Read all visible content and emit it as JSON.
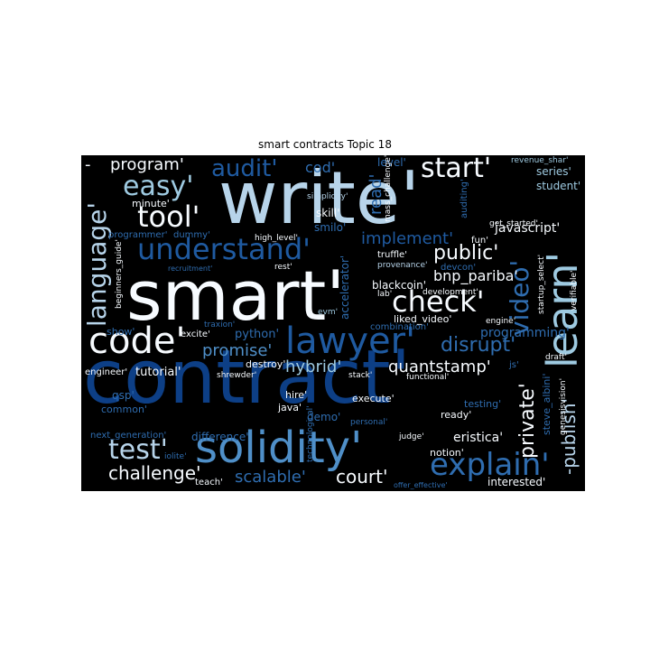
{
  "title": "smart contracts Topic 18",
  "palette": {
    "background": "#000000",
    "white": "#f7fbff",
    "light_blue": "#b7d4ea",
    "mid_blue": "#5a9ad0",
    "blue": "#2f6db0",
    "dark_blue": "#0d3f86",
    "navy": "#0a2f6a"
  },
  "words": [
    {
      "id": "smart",
      "text": "smart'"
    },
    {
      "id": "write",
      "text": "write'"
    },
    {
      "id": "contract",
      "text": "contract'"
    },
    {
      "id": "solidity",
      "text": "solidity'"
    },
    {
      "id": "code",
      "text": "code'"
    },
    {
      "id": "lawyer",
      "text": "lawyer'"
    },
    {
      "id": "learn",
      "text": "learn'"
    },
    {
      "id": "video",
      "text": "video'"
    },
    {
      "id": "explain",
      "text": "explain'"
    },
    {
      "id": "check",
      "text": "check'"
    },
    {
      "id": "start",
      "text": "start'"
    },
    {
      "id": "understand",
      "text": "understand'"
    },
    {
      "id": "language",
      "text": "language'"
    },
    {
      "id": "easy",
      "text": "easy'"
    },
    {
      "id": "tool",
      "text": "tool'"
    },
    {
      "id": "audit",
      "text": "audit'"
    },
    {
      "id": "program",
      "text": "program'"
    },
    {
      "id": "test",
      "text": "test'"
    },
    {
      "id": "challenge",
      "text": "challenge'"
    },
    {
      "id": "scalable",
      "text": "scalable'"
    },
    {
      "id": "court",
      "text": "court'"
    },
    {
      "id": "private",
      "text": "private'"
    },
    {
      "id": "publish",
      "text": "-publish'"
    },
    {
      "id": "quantstamp",
      "text": "quantstamp'"
    },
    {
      "id": "hybrid",
      "text": "hybrid'"
    },
    {
      "id": "promise",
      "text": "promise'"
    },
    {
      "id": "disrupt",
      "text": "disrupt'"
    },
    {
      "id": "implement",
      "text": "implement'"
    },
    {
      "id": "public",
      "text": "public'"
    },
    {
      "id": "bnp_pariba",
      "text": "bnp_pariba'"
    },
    {
      "id": "javascript",
      "text": "javascript'"
    },
    {
      "id": "cod",
      "text": "cod'"
    },
    {
      "id": "level",
      "text": "level'"
    },
    {
      "id": "read",
      "text": "read'"
    },
    {
      "id": "skill",
      "text": "skill'"
    },
    {
      "id": "smilo",
      "text": "smilo'"
    },
    {
      "id": "simplicity",
      "text": "simplicity'"
    },
    {
      "id": "mass_challenge",
      "text": "mass_challenge'"
    },
    {
      "id": "auditing",
      "text": "auditing'"
    },
    {
      "id": "series",
      "text": "series'"
    },
    {
      "id": "student",
      "text": "student'"
    },
    {
      "id": "revenue_shar",
      "text": "revenue_shar'"
    },
    {
      "id": "get_started",
      "text": "get_started'"
    },
    {
      "id": "minute",
      "text": "minute'"
    },
    {
      "id": "programmer",
      "text": "programmer'"
    },
    {
      "id": "dummy",
      "text": "dummy'"
    },
    {
      "id": "high_level",
      "text": "high_level'"
    },
    {
      "id": "fun",
      "text": "fun'"
    },
    {
      "id": "truffle",
      "text": "truffle'"
    },
    {
      "id": "provenance",
      "text": "provenance'"
    },
    {
      "id": "devcon",
      "text": "devcon'"
    },
    {
      "id": "blackcoin",
      "text": "blackcoin'"
    },
    {
      "id": "lab",
      "text": "lab'"
    },
    {
      "id": "development",
      "text": "development'"
    },
    {
      "id": "startup_select",
      "text": "startup_select'"
    },
    {
      "id": "accelerator",
      "text": "accelerator'"
    },
    {
      "id": "beginners_guide",
      "text": "beginners_guide'"
    },
    {
      "id": "recruitment",
      "text": "recruitment'"
    },
    {
      "id": "rest",
      "text": "rest'"
    },
    {
      "id": "evm",
      "text": "evm'"
    },
    {
      "id": "traxion",
      "text": "traxion'"
    },
    {
      "id": "excite",
      "text": "excite'"
    },
    {
      "id": "python",
      "text": "python'"
    },
    {
      "id": "combination",
      "text": "combination'"
    },
    {
      "id": "liked_video",
      "text": "liked_video'"
    },
    {
      "id": "engine",
      "text": "engine'"
    },
    {
      "id": "programming",
      "text": "programming'"
    },
    {
      "id": "verifiable",
      "text": "verifiable'"
    },
    {
      "id": "show",
      "text": "show'"
    },
    {
      "id": "engineer",
      "text": "engineer'"
    },
    {
      "id": "tutorial",
      "text": "tutorial'"
    },
    {
      "id": "destroy",
      "text": "destroy'"
    },
    {
      "id": "shrewder",
      "text": "shrewder'"
    },
    {
      "id": "stack",
      "text": "stack'"
    },
    {
      "id": "functional",
      "text": "functional'"
    },
    {
      "id": "draft",
      "text": "draft'"
    },
    {
      "id": "js",
      "text": "js'"
    },
    {
      "id": "qsp",
      "text": "qsp'"
    },
    {
      "id": "common",
      "text": "common'"
    },
    {
      "id": "hire",
      "text": "hire'"
    },
    {
      "id": "java",
      "text": "java'"
    },
    {
      "id": "execute",
      "text": "execute'"
    },
    {
      "id": "demo",
      "text": "demo'"
    },
    {
      "id": "personal",
      "text": "personal'"
    },
    {
      "id": "testing",
      "text": "testing'"
    },
    {
      "id": "ready",
      "text": "ready'"
    },
    {
      "id": "steve_albini",
      "text": "steve_albini'"
    },
    {
      "id": "genesisvision",
      "text": "genesisvision'"
    },
    {
      "id": "next_generation",
      "text": "next_generation'"
    },
    {
      "id": "difference",
      "text": "difference'"
    },
    {
      "id": "technological",
      "text": "technological'"
    },
    {
      "id": "judge",
      "text": "judge'"
    },
    {
      "id": "eristica",
      "text": "eristica'"
    },
    {
      "id": "notion",
      "text": "notion'"
    },
    {
      "id": "iolite",
      "text": "iolite'"
    },
    {
      "id": "teach",
      "text": "teach'"
    },
    {
      "id": "interested",
      "text": "interested'"
    },
    {
      "id": "offer_effective",
      "text": "offer_effective'"
    },
    {
      "id": "dash",
      "text": "-"
    }
  ]
}
